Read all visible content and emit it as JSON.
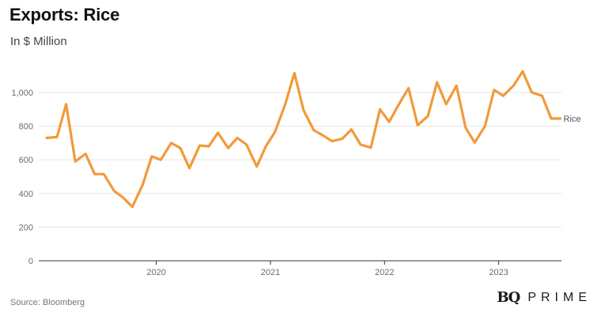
{
  "header": {
    "title": "Exports: Rice",
    "subtitle": "In $ Million"
  },
  "footer": {
    "source": "Source: Bloomberg",
    "logo_mark": "BQ",
    "logo_word": "PRIME"
  },
  "colors": {
    "line": "#f29a3a",
    "grid": "#e6e6e6",
    "axis": "#333333",
    "tick_text": "#6a6a6a"
  },
  "chart_data": {
    "type": "line",
    "title": "Exports: Rice",
    "subtitle": "In $ Million",
    "xlabel": "",
    "ylabel": "",
    "ylim": [
      0,
      1150
    ],
    "yticks": [
      0,
      200,
      400,
      600,
      800,
      1000
    ],
    "ytick_labels": [
      "0",
      "200",
      "400",
      "600",
      "800",
      "1,000"
    ],
    "xticks": [
      {
        "label": "2020",
        "x": 2020.0
      },
      {
        "label": "2021",
        "x": 2021.0
      },
      {
        "label": "2022",
        "x": 2022.0
      },
      {
        "label": "2023",
        "x": 2023.0
      }
    ],
    "x_range": [
      2018.97,
      2023.55
    ],
    "grid": true,
    "legend": "end-of-line label",
    "series": [
      {
        "name": "Rice",
        "x": [
          2019.04,
          2019.13,
          2019.21,
          2019.29,
          2019.38,
          2019.46,
          2019.54,
          2019.63,
          2019.71,
          2019.79,
          2019.88,
          2019.96,
          2020.04,
          2020.13,
          2020.21,
          2020.29,
          2020.38,
          2020.46,
          2020.54,
          2020.63,
          2020.71,
          2020.79,
          2020.88,
          2020.96,
          2021.04,
          2021.13,
          2021.21,
          2021.29,
          2021.38,
          2021.46,
          2021.54,
          2021.63,
          2021.71,
          2021.79,
          2021.88,
          2021.96,
          2022.04,
          2022.13,
          2022.21,
          2022.29,
          2022.38,
          2022.46,
          2022.54,
          2022.63,
          2022.71,
          2022.79,
          2022.88,
          2022.96,
          2023.04,
          2023.13,
          2023.21,
          2023.29,
          2023.38,
          2023.46,
          2023.54
        ],
        "y": [
          730,
          735,
          930,
          590,
          635,
          515,
          515,
          415,
          375,
          320,
          450,
          620,
          600,
          700,
          670,
          550,
          685,
          680,
          760,
          670,
          730,
          690,
          560,
          680,
          765,
          930,
          1115,
          895,
          775,
          745,
          710,
          725,
          780,
          690,
          672,
          900,
          825,
          935,
          1025,
          805,
          860,
          1060,
          930,
          1040,
          790,
          702,
          800,
          1015,
          980,
          1040,
          1125,
          1000,
          980,
          845,
          845
        ]
      }
    ],
    "annotations": [
      {
        "text": "Rice",
        "target": "last-point"
      }
    ]
  }
}
